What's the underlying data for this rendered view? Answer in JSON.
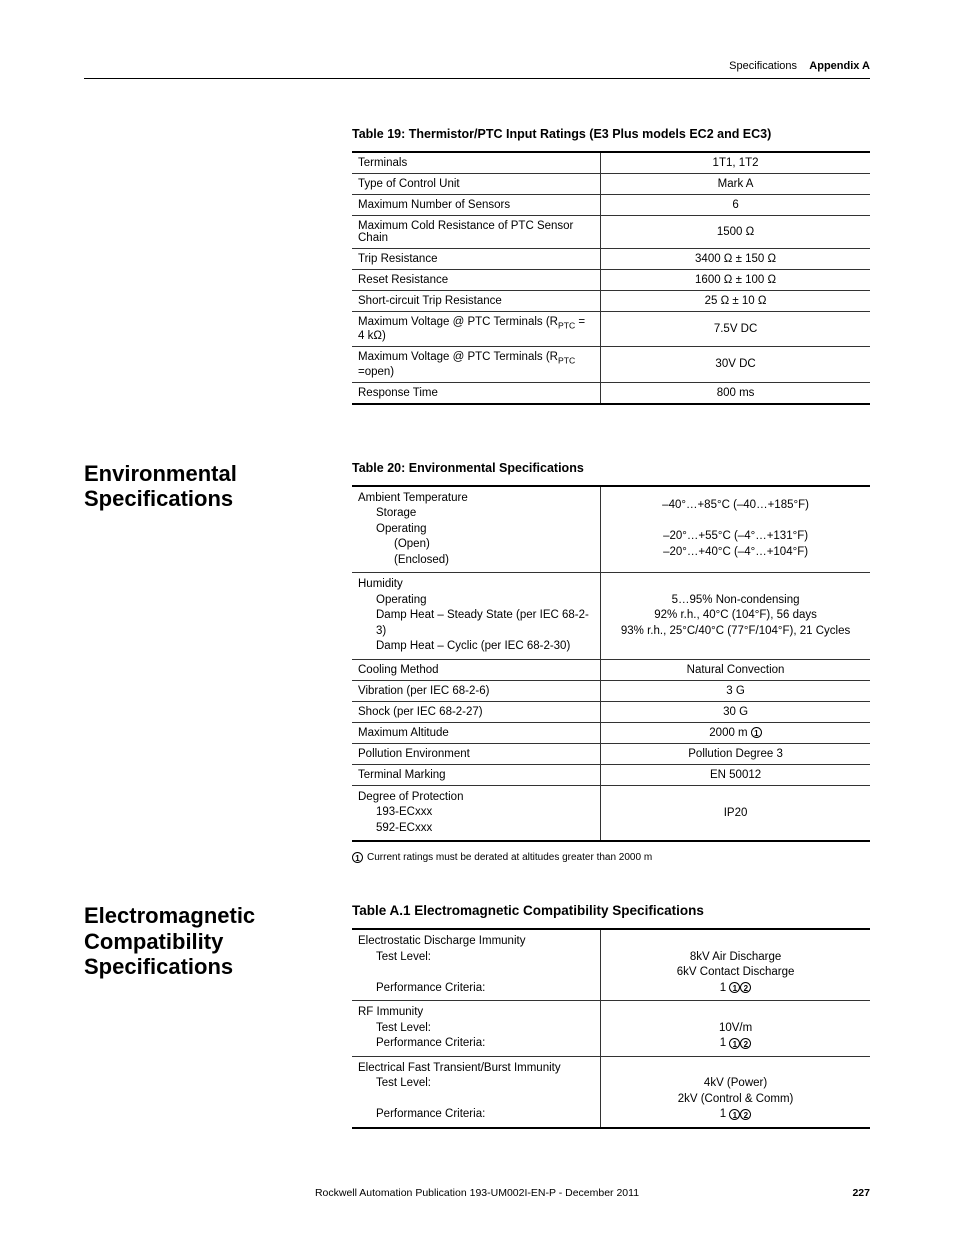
{
  "header": {
    "left": "Specifications",
    "right": "Appendix A"
  },
  "table19": {
    "title": "Table 19: Thermistor/PTC Input Ratings (E3 Plus models EC2 and EC3)",
    "rows": [
      {
        "label": "Terminals",
        "value": "1T1, 1T2"
      },
      {
        "label": "Type of Control Unit",
        "value": "Mark A"
      },
      {
        "label": "Maximum Number of Sensors",
        "value": "6"
      },
      {
        "label": "Maximum Cold Resistance of PTC Sensor Chain",
        "value": "1500 Ω"
      },
      {
        "label": "Trip Resistance",
        "value": "3400 Ω ± 150 Ω"
      },
      {
        "label": "Reset Resistance",
        "value": "1600 Ω ± 100 Ω"
      },
      {
        "label": "Short-circuit Trip Resistance",
        "value": "25 Ω ± 10 Ω"
      },
      {
        "label_html": "Maximum Voltage @ PTC Terminals (R<sub>PTC</sub> = 4 kΩ)",
        "value": "7.5V DC"
      },
      {
        "label_html": "Maximum Voltage @ PTC Terminals (R<sub>PTC</sub> =open)",
        "value": "30V DC"
      },
      {
        "label": "Response Time",
        "value": "800 ms"
      }
    ]
  },
  "env": {
    "heading": "Environmental Specifications",
    "title": "Table 20:  Environmental Specifications",
    "rows": [
      {
        "label_lines": [
          "Ambient Temperature",
          {
            "indent": 1,
            "text": "Storage"
          },
          {
            "indent": 1,
            "text": "Operating"
          },
          {
            "indent": 2,
            "text": "(Open)"
          },
          {
            "indent": 2,
            "text": "(Enclosed)"
          }
        ],
        "value_lines": [
          "–40°…+85°C (–40…+185°F)",
          "",
          "–20°…+55°C (–4°…+131°F)",
          "–20°…+40°C (–4°…+104°F)"
        ]
      },
      {
        "label_lines": [
          "Humidity",
          {
            "indent": 1,
            "text": "Operating"
          },
          {
            "indent": 1,
            "text": "Damp Heat – Steady State (per IEC 68-2-3)"
          },
          {
            "indent": 1,
            "text": "Damp Heat – Cyclic (per IEC 68-2-30)"
          }
        ],
        "value_lines": [
          "5…95% Non-condensing",
          "92% r.h., 40°C (104°F), 56 days",
          "93% r.h., 25°C/40°C (77°F/104°F), 21 Cycles"
        ]
      },
      {
        "label": "Cooling Method",
        "value": "Natural Convection"
      },
      {
        "label": "Vibration (per IEC 68-2-6)",
        "value": "3 G"
      },
      {
        "label": "Shock (per IEC 68-2-27)",
        "value": "30 G"
      },
      {
        "label": "Maximum Altitude",
        "value_html": "2000 m <span class=\"circled\">1</span>"
      },
      {
        "label": "Pollution Environment",
        "value": "Pollution Degree 3"
      },
      {
        "label": "Terminal Marking",
        "value": "EN 50012"
      },
      {
        "label_lines": [
          "Degree of Protection",
          {
            "indent": 1,
            "text": "193-ECxxx"
          },
          {
            "indent": 1,
            "text": "592-ECxxx"
          }
        ],
        "value": "IP20"
      }
    ],
    "footnote_num": "1",
    "footnote_text": "Current ratings must be derated at altitudes greater than 2000 m"
  },
  "emc": {
    "heading": "Electromagnetic Compatibility Specifications",
    "title": "Table A.1 Electromagnetic Compatibility Specifications",
    "rows": [
      {
        "label_lines": [
          "Electrostatic Discharge Immunity",
          {
            "indent": 1,
            "text": "Test Level:"
          },
          "",
          {
            "indent": 1,
            "text": "Performance Criteria:"
          }
        ],
        "value_lines": [
          "",
          "8kV Air Discharge",
          "6kV Contact Discharge",
          {
            "html": "1 <span class=\"circled\">1</span><span class=\"circled\">2</span>"
          }
        ]
      },
      {
        "label_lines": [
          "RF Immunity",
          {
            "indent": 1,
            "text": "Test Level:"
          },
          {
            "indent": 1,
            "text": "Performance Criteria:"
          }
        ],
        "value_lines": [
          "",
          "10V/m",
          {
            "html": "1 <span class=\"circled\">1</span><span class=\"circled\">2</span>"
          }
        ]
      },
      {
        "label_lines": [
          "Electrical Fast Transient/Burst Immunity",
          {
            "indent": 1,
            "text": "Test Level:"
          },
          "",
          {
            "indent": 1,
            "text": "Performance Criteria:"
          }
        ],
        "value_lines": [
          "",
          "4kV (Power)",
          "2kV (Control & Comm)",
          {
            "html": "1 <span class=\"circled\">1</span><span class=\"circled\">2</span>"
          }
        ]
      }
    ]
  },
  "footer": {
    "pub": "Rockwell Automation Publication 193-UM002I-EN-P - December 2011",
    "page": "227"
  }
}
